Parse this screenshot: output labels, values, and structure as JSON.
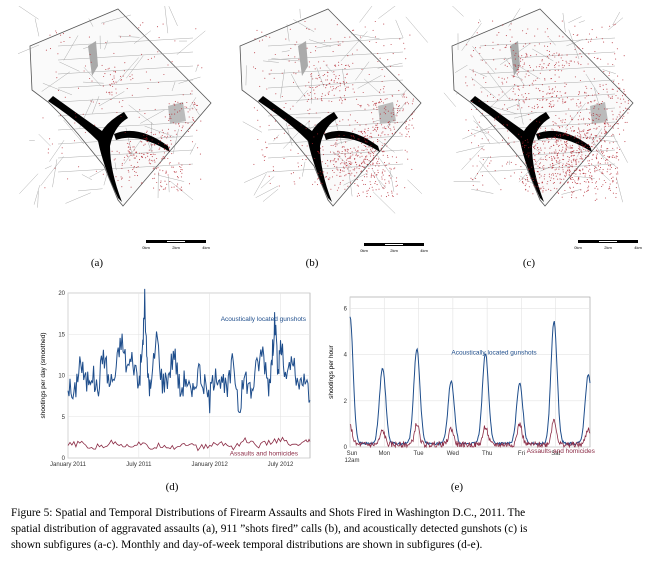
{
  "maps": [
    {
      "id": "a",
      "label": "(a)",
      "density": 0.25
    },
    {
      "id": "b",
      "label": "(b)",
      "density": 0.6
    },
    {
      "id": "c",
      "label": "(c)",
      "density": 1.0
    }
  ],
  "scalebar": {
    "labels": [
      "0km",
      "2km",
      "4km"
    ]
  },
  "chart_data": [
    {
      "type": "line",
      "id": "d",
      "label": "(d)",
      "ylabel": "shootings per day (smoothed)",
      "x_ticks": [
        "January 2011",
        "July 2011",
        "January 2012",
        "July 2012"
      ],
      "x_tick_months": [
        0,
        6,
        12,
        18
      ],
      "x_range_months": [
        0,
        20.5
      ],
      "y_ticks": [
        0,
        5,
        10,
        15,
        20
      ],
      "ylim": [
        0,
        20
      ],
      "grid": true,
      "series": [
        {
          "name": "Acoustically located gunshots",
          "color": "#1f4e8c",
          "points": [
            [
              0,
              9
            ],
            [
              0.5,
              7
            ],
            [
              1,
              12
            ],
            [
              1.5,
              9
            ],
            [
              2,
              10.5
            ],
            [
              2.5,
              8
            ],
            [
              3,
              13
            ],
            [
              3.5,
              9
            ],
            [
              4,
              10
            ],
            [
              4.5,
              14.5
            ],
            [
              5,
              11
            ],
            [
              5.5,
              12
            ],
            [
              6,
              9
            ],
            [
              6.3,
              13
            ],
            [
              6.5,
              19
            ],
            [
              6.7,
              11
            ],
            [
              7,
              8
            ],
            [
              7.5,
              15
            ],
            [
              8,
              9
            ],
            [
              8.5,
              10
            ],
            [
              9,
              13
            ],
            [
              9.5,
              8
            ],
            [
              10,
              10
            ],
            [
              10.5,
              7
            ],
            [
              11,
              11
            ],
            [
              11.5,
              9
            ],
            [
              12,
              7
            ],
            [
              12.5,
              11
            ],
            [
              13,
              9
            ],
            [
              13.5,
              8
            ],
            [
              14,
              12
            ],
            [
              14.5,
              6
            ],
            [
              15,
              10
            ],
            [
              15.5,
              8
            ],
            [
              16,
              11
            ],
            [
              16.5,
              13
            ],
            [
              17,
              9
            ],
            [
              17.3,
              12
            ],
            [
              17.5,
              17
            ],
            [
              17.8,
              10
            ],
            [
              18,
              14
            ],
            [
              18.5,
              9
            ],
            [
              19,
              12
            ],
            [
              19.5,
              8
            ],
            [
              20,
              10
            ],
            [
              20.5,
              7
            ]
          ]
        },
        {
          "name": "Assaults and homicides",
          "color": "#8b2b45",
          "points": [
            [
              0,
              1.5
            ],
            [
              1,
              1.8
            ],
            [
              2,
              1.2
            ],
            [
              3,
              1.5
            ],
            [
              4,
              2
            ],
            [
              5,
              1.4
            ],
            [
              6,
              1.8
            ],
            [
              7,
              1.2
            ],
            [
              8,
              1.6
            ],
            [
              9,
              1.3
            ],
            [
              10,
              1.8
            ],
            [
              11,
              1.2
            ],
            [
              12,
              1.5
            ],
            [
              13,
              1.8
            ],
            [
              14,
              1.3
            ],
            [
              15,
              2.2
            ],
            [
              16,
              1.5
            ],
            [
              17,
              1.8
            ],
            [
              18,
              2.3
            ],
            [
              19,
              1.4
            ],
            [
              20,
              1.8
            ],
            [
              20.5,
              2
            ]
          ]
        }
      ]
    },
    {
      "type": "line",
      "id": "e",
      "label": "(e)",
      "ylabel": "shootings per hour",
      "x_ticks": [
        "Sun 12am",
        "Mon",
        "Tue",
        "Wed",
        "Thu",
        "Fri",
        "Sat"
      ],
      "x_range_days": [
        0,
        7
      ],
      "y_ticks": [
        0,
        2,
        4,
        6
      ],
      "ylim": [
        0,
        6.5
      ],
      "grid": true,
      "series": [
        {
          "name": "Acoustically located gunshots",
          "color": "#1f4e8c",
          "peaks": [
            [
              0,
              5.5
            ],
            [
              0.95,
              3.3
            ],
            [
              1.95,
              4.1
            ],
            [
              2.95,
              2.7
            ],
            [
              3.95,
              3.9
            ],
            [
              4.95,
              2.6
            ],
            [
              5.95,
              5.3
            ],
            [
              6.95,
              3.0
            ]
          ]
        },
        {
          "name": "Assaults and homicides x 5",
          "color": "#8b2b45",
          "peaks": [
            [
              0,
              0.8
            ],
            [
              0.95,
              0.6
            ],
            [
              1.95,
              0.9
            ],
            [
              2.95,
              0.7
            ],
            [
              3.95,
              0.8
            ],
            [
              4.95,
              0.9
            ],
            [
              5.95,
              1.1
            ],
            [
              6.95,
              0.7
            ]
          ]
        }
      ]
    }
  ],
  "caption": {
    "line1": "Figure 5: Spatial and Temporal Distributions of Firearm Assaults and Shots Fired in Washington D.C., 2011. The",
    "line2": "spatial distribution of aggravated assaults (a), 911 ”shots fired” calls (b), and acoustically detected gunshots (c) is",
    "line3": "shown subfigures (a-c). Monthly and day-of-week temporal distributions are shown in subfigures (d-e)."
  }
}
